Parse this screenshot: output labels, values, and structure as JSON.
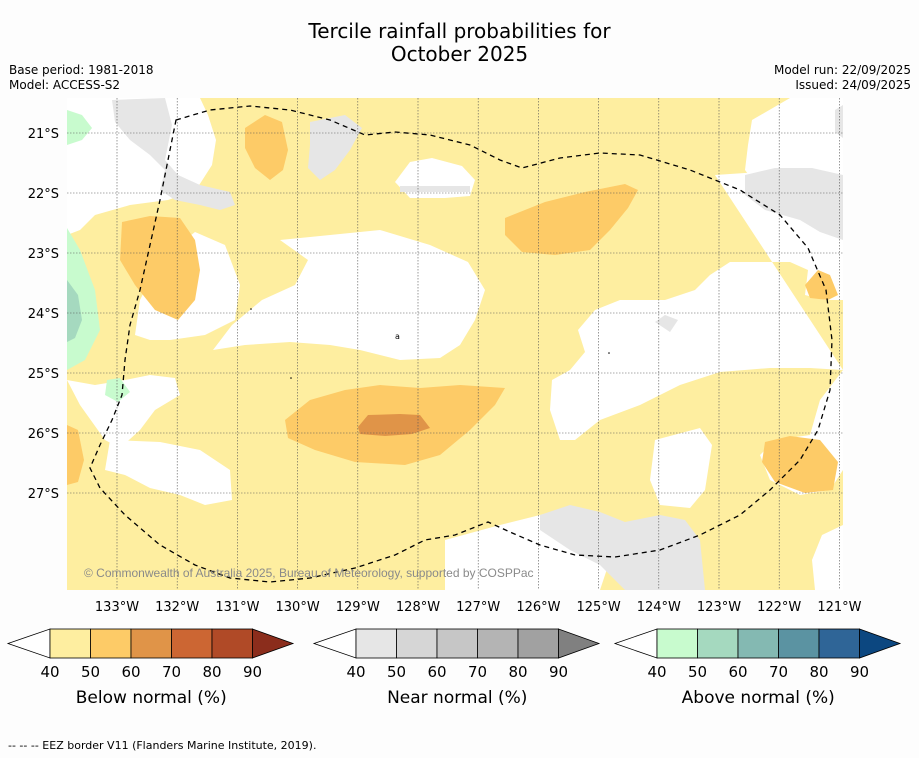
{
  "header": {
    "title_line1": "Tercile rainfall probabilities for",
    "title_line2": "October 2025",
    "base_period": "Base period: 1981-2018",
    "model": "Model: ACCESS-S2",
    "model_run": "Model run: 22/09/2025",
    "issued": "Issued: 24/09/2025"
  },
  "map": {
    "lat_labels": [
      "21°S",
      "22°S",
      "23°S",
      "24°S",
      "25°S",
      "26°S",
      "27°S"
    ],
    "lon_labels": [
      "133°W",
      "132°W",
      "131°W",
      "130°W",
      "129°W",
      "128°W",
      "127°W",
      "126°W",
      "125°W",
      "124°W",
      "123°W",
      "122°W",
      "121°W"
    ],
    "copyright": "© Commonwealth of Australia 2025, Bureau of Meteorology, supported by COSPPac"
  },
  "colorbars": [
    {
      "label": "Below normal (%)",
      "ticks": [
        "40",
        "50",
        "60",
        "70",
        "80",
        "90"
      ],
      "colors": [
        "#feeea0",
        "#fdcb67",
        "#e09448",
        "#cc6633",
        "#b04a27",
        "#8b2d1c"
      ]
    },
    {
      "label": "Near normal (%)",
      "ticks": [
        "40",
        "50",
        "60",
        "70",
        "80",
        "90"
      ],
      "colors": [
        "#e6e6e6",
        "#d6d6d6",
        "#c6c6c6",
        "#b4b4b4",
        "#a1a1a1",
        "#808080"
      ]
    },
    {
      "label": "Above normal (%)",
      "ticks": [
        "40",
        "50",
        "60",
        "70",
        "80",
        "90"
      ],
      "colors": [
        "#c8fbce",
        "#a5d9bf",
        "#84b9b2",
        "#5b93a2",
        "#2f6597",
        "#0c4780"
      ]
    }
  ],
  "footnote": "--  --  -- EEZ border V11 (Flanders Marine Institute, 2019).",
  "colors": {
    "background": "#fdfdfd",
    "no_signal": "#ffffff",
    "grid": "#444444"
  }
}
